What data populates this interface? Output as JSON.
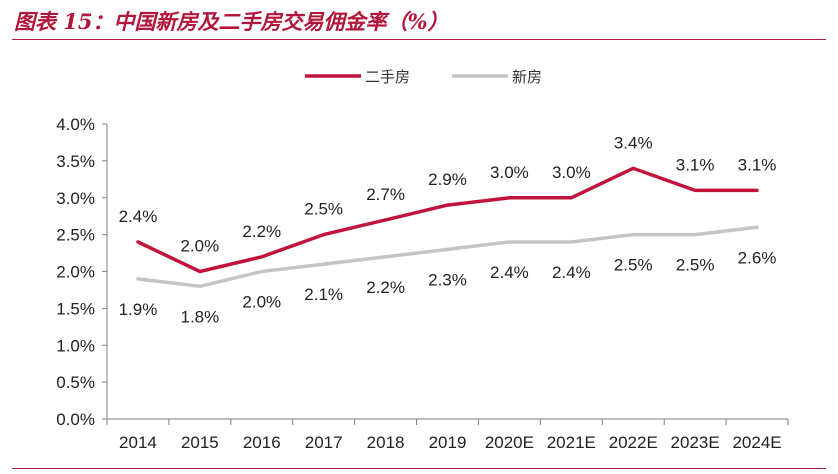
{
  "header": {
    "title": "图表 15：中国新房及二手房交易佣金率（%）"
  },
  "colors": {
    "accent": "#b2163a",
    "secondhand": "#c0143c",
    "newhome": "#c4c4c4"
  },
  "chart_data": {
    "type": "line",
    "categories": [
      "2014",
      "2015",
      "2016",
      "2017",
      "2018",
      "2019",
      "2020E",
      "2021E",
      "2022E",
      "2023E",
      "2024E"
    ],
    "series": [
      {
        "name": "二手房",
        "values": [
          2.4,
          2.0,
          2.2,
          2.5,
          2.7,
          2.9,
          3.0,
          3.0,
          3.4,
          3.1,
          3.1
        ],
        "labels": [
          "2.4%",
          "2.0%",
          "2.2%",
          "2.5%",
          "2.7%",
          "2.9%",
          "3.0%",
          "3.0%",
          "3.4%",
          "3.1%",
          "3.1%"
        ]
      },
      {
        "name": "新房",
        "values": [
          1.9,
          1.8,
          2.0,
          2.1,
          2.2,
          2.3,
          2.4,
          2.4,
          2.5,
          2.5,
          2.6
        ],
        "labels": [
          "1.9%",
          "1.8%",
          "2.0%",
          "2.1%",
          "2.2%",
          "2.3%",
          "2.4%",
          "2.4%",
          "2.5%",
          "2.5%",
          "2.6%"
        ]
      }
    ],
    "yticks": [
      "0.0%",
      "0.5%",
      "1.0%",
      "1.5%",
      "2.0%",
      "2.5%",
      "3.0%",
      "3.5%",
      "4.0%"
    ],
    "ylim": [
      0,
      4.0
    ],
    "legend": "top-center",
    "grid": false
  }
}
